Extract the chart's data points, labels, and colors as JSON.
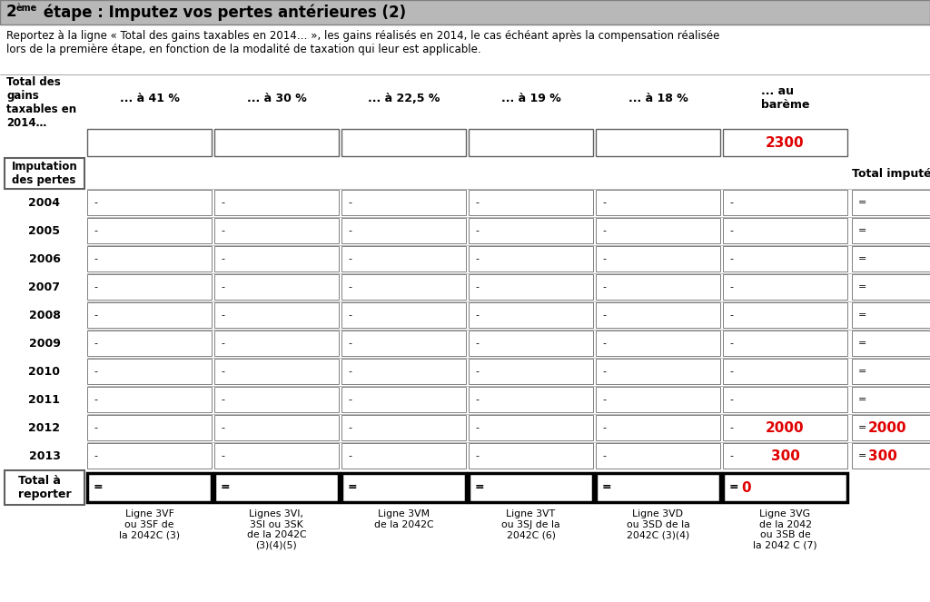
{
  "subtitle": "Reportez à la ligne « Total des gains taxables en 2014… », les gains réalisés en 2014, le cas échéant après la compensation réalisée\nlors de la première étape, en fonction de la modalité de taxation qui leur est applicable.",
  "col_headers": [
    "... à 41 %",
    "... à 30 %",
    "... à 22,5 %",
    "... à 19 %",
    "... à 18 %",
    "... au\nbarème"
  ],
  "footer_labels": [
    "Ligne 3VF\nou 3SF de\nla 2042C (3)",
    "Lignes 3VI,\n3SI ou 3SK\nde la 2042C\n(3)(4)(5)",
    "Ligne 3VM\nde la 2042C",
    "Ligne 3VT\nou 3SJ de la\n2042C (6)",
    "Ligne 3VD\nou 3SD de la\n2042C (3)(4)",
    "Ligne 3VG\nde la 2042\nou 3SB de\nla 2042 C (7)"
  ],
  "total_impute_label": "Total imputé",
  "background_color": "#ffffff",
  "title_bg": "#b8b8b8",
  "red_color": "#e00000",
  "cell_values": {
    "row0_col5": "2300",
    "row10_col5": "2000",
    "row10_total": "2000",
    "row11_col5": "300",
    "row11_total": "300",
    "total_row_col5": "0"
  },
  "years": [
    2004,
    2005,
    2006,
    2007,
    2008,
    2009,
    2010,
    2011,
    2012,
    2013
  ]
}
